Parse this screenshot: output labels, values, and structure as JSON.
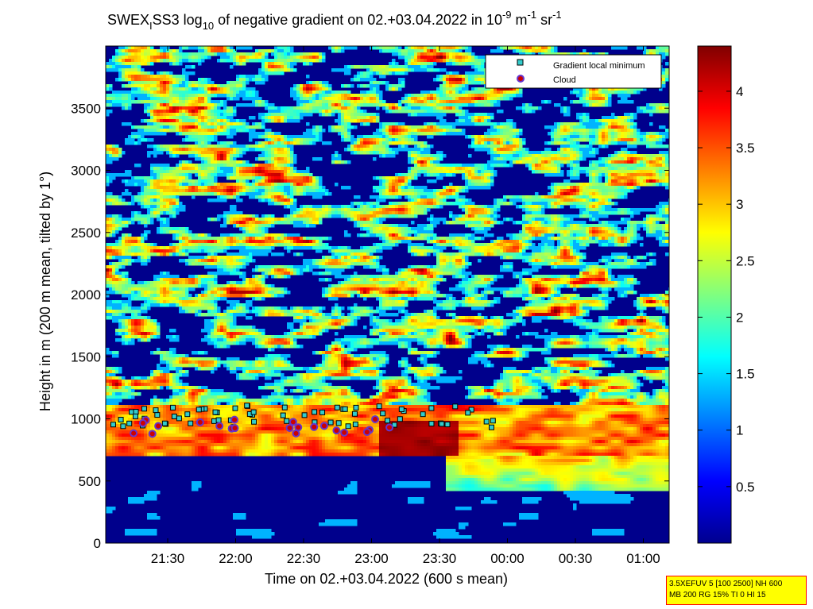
{
  "chart_data": {
    "type": "heatmap",
    "title": {
      "prefix": "SWEX",
      "sub1": "I",
      "mid1": "SS3 log",
      "sub2": "10",
      "mid2": " of negative gradient on 02.+03.04.2022 in 10",
      "sup1": "-9",
      "mid3": " m",
      "sup2": "-1",
      "mid4": " sr",
      "sup3": "-1"
    },
    "xlabel": "Time on 02.+03.04.2022 (600 s mean)",
    "ylabel": "Height in m (200 m mean, tilted by 1°)",
    "x_ticks": [
      "21:30",
      "22:00",
      "22:30",
      "23:00",
      "23:30",
      "00:00",
      "00:30",
      "01:00"
    ],
    "y_ticks": [
      "0",
      "500",
      "1000",
      "1500",
      "2000",
      "2500",
      "3000",
      "3500"
    ],
    "y_range": [
      0,
      4000
    ],
    "colorbar": {
      "ticks": [
        "0.5",
        "1",
        "1.5",
        "2",
        "2.5",
        "3",
        "3.5",
        "4"
      ],
      "range": [
        0,
        4.4
      ],
      "colormap": "jet"
    },
    "legend": {
      "position": "top-right",
      "entries": [
        {
          "label": "Gradient local minimum",
          "marker": "square",
          "color": "#33cccc"
        },
        {
          "label": "Cloud",
          "marker": "circle",
          "color": "#cc0000"
        }
      ]
    },
    "cloud_layer_height_m": 900,
    "background_color": "#00008c"
  },
  "info_box": {
    "line1": "3.5XEFUV 5 [100 2500] NH 600",
    "line2": "MB 200 RG 15% TI 0 HI 15"
  }
}
